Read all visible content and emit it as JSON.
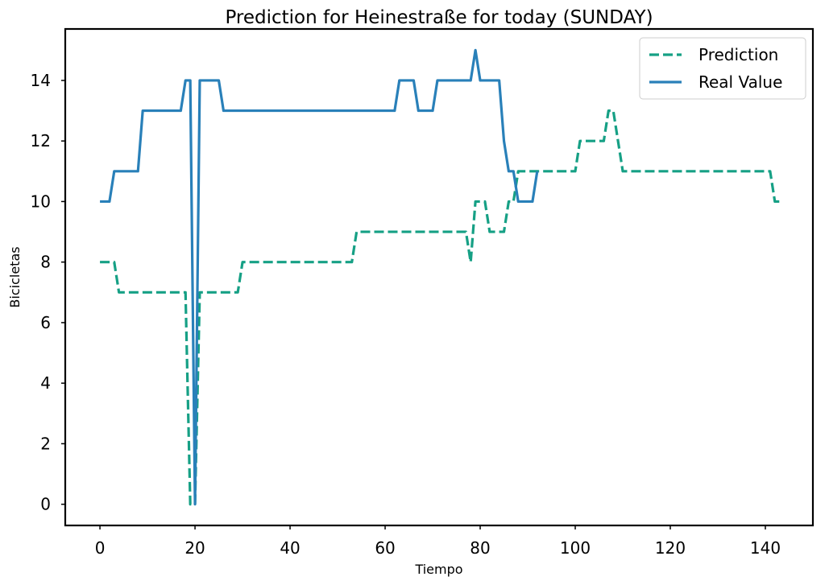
{
  "chart_data": {
    "type": "line",
    "title": "Prediction for Heinestraße for today (SUNDAY)",
    "xlabel": "Tiempo",
    "ylabel": "Bicicletas",
    "xlim": [
      -7.3,
      150
    ],
    "ylim": [
      -0.7,
      15.7
    ],
    "xticks": [
      0,
      20,
      40,
      60,
      80,
      100,
      120,
      140
    ],
    "yticks": [
      0,
      2,
      4,
      6,
      8,
      10,
      12,
      14
    ],
    "grid": false,
    "legend_position": "top-right",
    "series": [
      {
        "name": "Prediction",
        "style": "dashed",
        "color": "#16a085",
        "x": [
          0,
          1,
          2,
          3,
          4,
          5,
          6,
          7,
          8,
          9,
          10,
          11,
          12,
          13,
          14,
          15,
          16,
          17,
          18,
          19,
          20,
          21,
          22,
          23,
          24,
          25,
          26,
          27,
          28,
          29,
          30,
          31,
          32,
          33,
          34,
          35,
          36,
          37,
          38,
          39,
          40,
          41,
          42,
          43,
          44,
          45,
          46,
          47,
          48,
          49,
          50,
          51,
          52,
          53,
          54,
          55,
          56,
          57,
          58,
          59,
          60,
          61,
          62,
          63,
          64,
          65,
          66,
          67,
          68,
          69,
          70,
          71,
          72,
          73,
          74,
          75,
          76,
          77,
          78,
          79,
          80,
          81,
          82,
          83,
          84,
          85,
          86,
          87,
          88,
          89,
          90,
          91,
          92,
          93,
          94,
          95,
          96,
          97,
          98,
          99,
          100,
          101,
          102,
          103,
          104,
          105,
          106,
          107,
          108,
          109,
          110,
          111,
          112,
          113,
          114,
          115,
          116,
          117,
          118,
          119,
          120,
          121,
          122,
          123,
          124,
          125,
          126,
          127,
          128,
          129,
          130,
          131,
          132,
          133,
          134,
          135,
          136,
          137,
          138,
          139,
          140,
          141,
          142,
          143
        ],
        "y": [
          8,
          8,
          8,
          8,
          7,
          7,
          7,
          7,
          7,
          7,
          7,
          7,
          7,
          7,
          7,
          7,
          7,
          7,
          7,
          0,
          0,
          7,
          7,
          7,
          7,
          7,
          7,
          7,
          7,
          7,
          8,
          8,
          8,
          8,
          8,
          8,
          8,
          8,
          8,
          8,
          8,
          8,
          8,
          8,
          8,
          8,
          8,
          8,
          8,
          8,
          8,
          8,
          8,
          8,
          9,
          9,
          9,
          9,
          9,
          9,
          9,
          9,
          9,
          9,
          9,
          9,
          9,
          9,
          9,
          9,
          9,
          9,
          9,
          9,
          9,
          9,
          9,
          9,
          8,
          10,
          10,
          10,
          9,
          9,
          9,
          9,
          10,
          10,
          11,
          11,
          11,
          11,
          11,
          11,
          11,
          11,
          11,
          11,
          11,
          11,
          11,
          12,
          12,
          12,
          12,
          12,
          12,
          13,
          13,
          12,
          11,
          11,
          11,
          11,
          11,
          11,
          11,
          11,
          11,
          11,
          11,
          11,
          11,
          11,
          11,
          11,
          11,
          11,
          11,
          11,
          11,
          11,
          11,
          11,
          11,
          11,
          11,
          11,
          11,
          11,
          11,
          11,
          10,
          10
        ]
      },
      {
        "name": "Real Value",
        "style": "solid",
        "color": "#2980b9",
        "x": [
          0,
          1,
          2,
          3,
          4,
          5,
          6,
          7,
          8,
          9,
          10,
          11,
          12,
          13,
          14,
          15,
          16,
          17,
          18,
          19,
          20,
          21,
          22,
          23,
          24,
          25,
          26,
          27,
          28,
          29,
          30,
          31,
          32,
          33,
          34,
          35,
          36,
          37,
          38,
          39,
          40,
          41,
          42,
          43,
          44,
          45,
          46,
          47,
          48,
          49,
          50,
          51,
          52,
          53,
          54,
          55,
          56,
          57,
          58,
          59,
          60,
          61,
          62,
          63,
          64,
          65,
          66,
          67,
          68,
          69,
          70,
          71,
          72,
          73,
          74,
          75,
          76,
          77,
          78,
          79,
          80,
          81,
          82,
          83,
          84,
          85,
          86,
          87,
          88,
          89,
          90,
          91,
          92
        ],
        "y": [
          10,
          10,
          10,
          11,
          11,
          11,
          11,
          11,
          11,
          13,
          13,
          13,
          13,
          13,
          13,
          13,
          13,
          13,
          14,
          14,
          0,
          14,
          14,
          14,
          14,
          14,
          13,
          13,
          13,
          13,
          13,
          13,
          13,
          13,
          13,
          13,
          13,
          13,
          13,
          13,
          13,
          13,
          13,
          13,
          13,
          13,
          13,
          13,
          13,
          13,
          13,
          13,
          13,
          13,
          13,
          13,
          13,
          13,
          13,
          13,
          13,
          13,
          13,
          14,
          14,
          14,
          14,
          13,
          13,
          13,
          13,
          14,
          14,
          14,
          14,
          14,
          14,
          14,
          14,
          15,
          14,
          14,
          14,
          14,
          14,
          12,
          11,
          11,
          10,
          10,
          10,
          10,
          11
        ]
      }
    ]
  }
}
